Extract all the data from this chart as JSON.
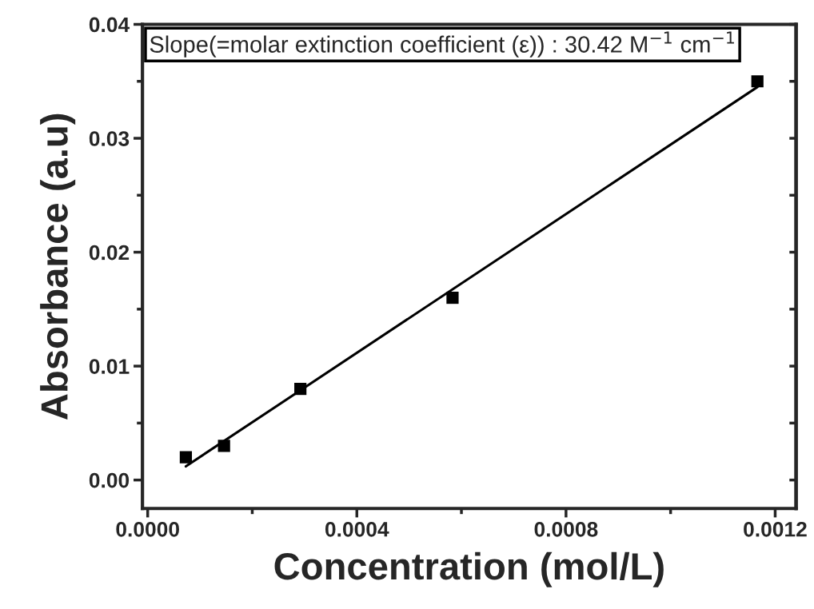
{
  "chart_data": {
    "type": "scatter",
    "xlabel": "Concentration (mol/L)",
    "ylabel": "Absorbance (a.u)",
    "annotations": [
      "Slope(=molar extinction coefficient (ε)) : 30.42 M$^{−1}$ cm$^{−1}$"
    ],
    "x": [
      7.3e-05,
      0.000146,
      0.000292,
      0.000583,
      0.001166
    ],
    "series": [
      {
        "color": "#000000",
        "values": [
          0.002,
          0.003,
          0.008,
          0.016,
          0.035
        ],
        "marker": "square"
      },
      {
        "type": "line",
        "color": "#000000",
        "x": [
          7.3e-05,
          0.001166
        ],
        "values": [
          0.0012,
          0.0345
        ],
        "marker": "none",
        "line_style": "solid"
      }
    ],
    "xlim": [
      -1e-05,
      0.00124
    ],
    "ylim": [
      -0.0025,
      0.04
    ],
    "xticks": [
      {
        "value": 0,
        "label": "0.0000"
      },
      0.0004,
      0.0008,
      0.0012
    ],
    "yticks": [
      {
        "value": 0,
        "label": "0.00"
      },
      0.01,
      0.02,
      0.03,
      0.04
    ],
    "grid": false,
    "legend": false
  }
}
